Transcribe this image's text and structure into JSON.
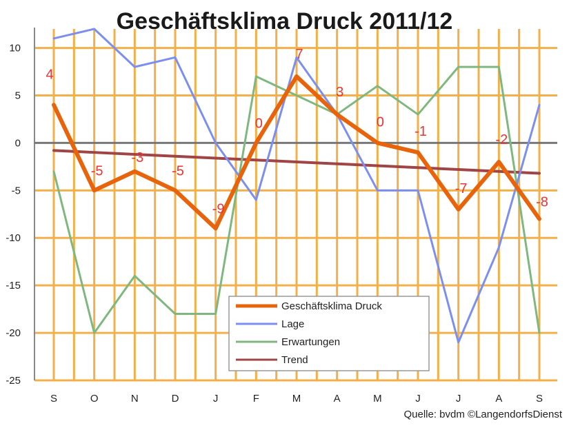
{
  "chart_data": {
    "type": "line",
    "title": "Geschäftsklima Druck 2011/12",
    "categories": [
      "S",
      "O",
      "N",
      "D",
      "J",
      "F",
      "M",
      "A",
      "M",
      "J",
      "J",
      "A",
      "S"
    ],
    "ylim": [
      -25,
      12
    ],
    "yticks": [
      10,
      5,
      0,
      -5,
      -10,
      -15,
      -20,
      -25
    ],
    "grid": true,
    "legend_position": "bottom-center",
    "series": [
      {
        "name": "Geschäftsklima Druck",
        "color": "#e8640c",
        "values": [
          4,
          -5,
          -3,
          -5,
          -9,
          0,
          7,
          3,
          0,
          -1,
          -7,
          -2,
          -8
        ]
      },
      {
        "name": "Lage",
        "color": "#7b8ff0",
        "values": [
          11,
          12,
          8,
          9,
          0,
          -6,
          9,
          3,
          -5,
          -5,
          -21,
          -11,
          4
        ]
      },
      {
        "name": "Erwartungen",
        "color": "#7fb87f",
        "values": [
          -3,
          -20,
          -14,
          -18,
          -18,
          7,
          5,
          3,
          6,
          3,
          8,
          8,
          -20
        ]
      },
      {
        "name": "Trend",
        "color": "#a04545",
        "values": [
          -0.8,
          -1.0,
          -1.2,
          -1.4,
          -1.6,
          -1.8,
          -2.0,
          -2.2,
          -2.4,
          -2.6,
          -2.8,
          -3.0,
          -3.2
        ]
      }
    ],
    "data_labels": [
      "4",
      "-5",
      "-3",
      "-5",
      "-9",
      "0",
      "7",
      "3",
      "0",
      "-1",
      "-7",
      "-2",
      "-8"
    ]
  },
  "source": "Quelle: bvdm ©LangendorfsDienst"
}
